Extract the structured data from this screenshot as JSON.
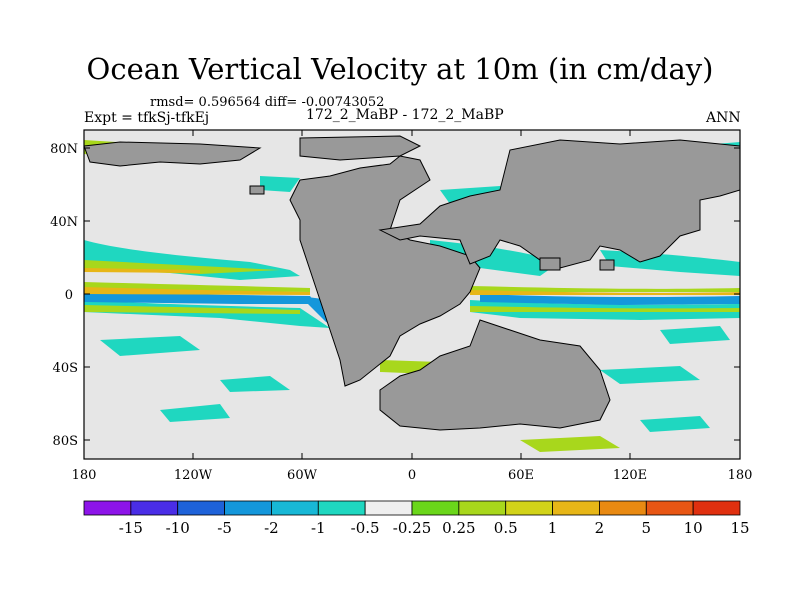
{
  "title": "Ocean Vertical Velocity at 10m (in cm/day)",
  "stats": "rmsd= 0.596564 diff= -0.00743052",
  "expt": "Expt = tfkSj-tfkEj",
  "case": "172_2_MaBP - 172_2_MaBP",
  "season": "ANN",
  "y_ticks": [
    "80N",
    "40N",
    "0",
    "40S",
    "80S"
  ],
  "x_ticks": [
    "180",
    "120W",
    "60W",
    "0",
    "60E",
    "120E",
    "180"
  ],
  "legend": {
    "colors": [
      "#8d14e9",
      "#4a2de6",
      "#1e62d9",
      "#1497db",
      "#18b8d6",
      "#1fd7c0",
      "#efefef",
      "#6ad61a",
      "#a8d71c",
      "#d2d319",
      "#e7b617",
      "#e98a12",
      "#e85614",
      "#e0300f"
    ],
    "labels": [
      "-15",
      "-10",
      "-5",
      "-2",
      "-1",
      "-0.5",
      "-0.25",
      "0.25",
      "0.5",
      "1",
      "2",
      "5",
      "10",
      "15"
    ]
  },
  "colors": {
    "land": "#999999",
    "ocean_bg": "#e6e6e6"
  }
}
